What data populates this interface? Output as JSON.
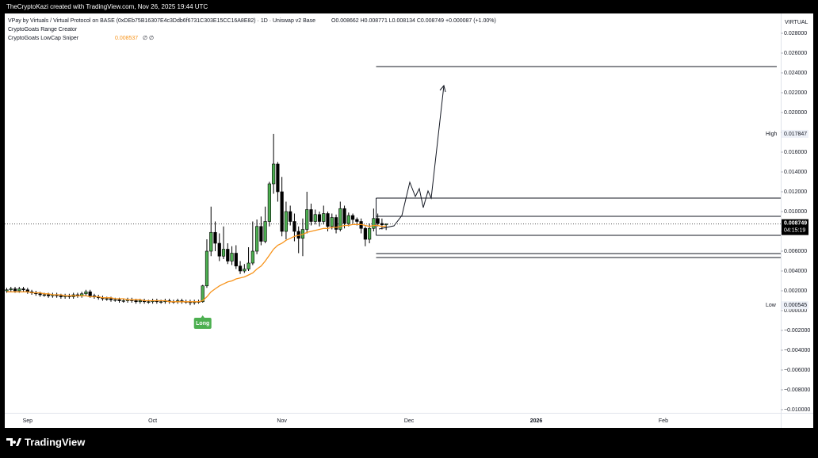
{
  "header": {
    "credit": "TheCryptoKazi created with TradingView.com, Nov 26, 2025 19:44 UTC",
    "symbol": "VPay by Virtuals / Virtual Protocol on BASE (0xDEb75B16307E4c3Ddb6f6731C303E15CC16A8E82) · 1D · Uniswap v2 Base",
    "ohlc": "O0.008662 H0.008771 L0.008134 C0.008749 +0.000087 (+1.00%)",
    "currency": "VIRTUAL",
    "indicator_range": "CryptoGoats Range Creator",
    "indicator_sniper": "CryptoGoats LowCap Sniper",
    "indicator_sniper_extra": "∅ ∅"
  },
  "chart_data": {
    "type": "candlestick",
    "categories": [
      null,
      null,
      null,
      null,
      null,
      "Sep",
      null,
      null,
      null,
      null,
      null,
      null,
      null,
      null,
      null,
      null,
      null,
      null,
      null,
      null,
      null,
      null,
      null,
      null,
      null,
      null,
      null,
      null,
      null,
      null,
      null,
      null,
      null,
      null,
      null,
      "Oct",
      null,
      null,
      null,
      null,
      null,
      null,
      null,
      null,
      null,
      null,
      null,
      null,
      null,
      null,
      null,
      null,
      null,
      null,
      null,
      null,
      null,
      null,
      null,
      null,
      null,
      null,
      null,
      null,
      null,
      null,
      "Nov",
      null,
      null,
      null,
      null,
      null,
      null,
      null,
      null,
      null,
      null,
      null,
      null,
      null,
      null,
      null,
      null,
      null,
      null,
      null,
      null,
      null,
      null,
      null,
      null,
      null
    ],
    "future_categories": [
      "Dec",
      "2026",
      "Feb"
    ],
    "open": [
      0.002,
      0.0021,
      0.0022,
      0.002,
      0.0022,
      0.0021,
      0.0019,
      0.0018,
      0.0017,
      0.0016,
      0.0016,
      0.0015,
      0.0016,
      0.0015,
      0.0014,
      0.0015,
      0.0014,
      0.0016,
      0.0015,
      0.0017,
      0.0019,
      0.0015,
      0.0014,
      0.0013,
      0.0012,
      0.0012,
      0.0011,
      0.0011,
      0.001,
      0.001,
      0.0011,
      0.001,
      0.0009,
      0.001,
      0.0009,
      0.0009,
      0.001,
      0.0009,
      0.0009,
      0.001,
      0.0009,
      0.0009,
      0.001,
      0.0009,
      0.0009,
      0.0008,
      0.0009,
      0.0009,
      0.0025,
      0.006,
      0.0079,
      0.0068,
      0.0055,
      0.0062,
      0.005,
      0.0058,
      0.0045,
      0.004,
      0.0042,
      0.0048,
      0.006,
      0.0085,
      0.007,
      0.009,
      0.0128,
      0.0148,
      0.012,
      0.008,
      0.01,
      0.009,
      0.008,
      0.0073,
      0.0082,
      0.0102,
      0.009,
      0.0097,
      0.009,
      0.0098,
      0.0085,
      0.0094,
      0.0082,
      0.0103,
      0.0088,
      0.0096,
      0.0092,
      0.009,
      0.0083,
      0.0072,
      0.0083,
      0.0093,
      0.0088,
      0.008662
    ],
    "high": [
      0.0023,
      0.0024,
      0.0024,
      0.0024,
      0.0024,
      0.0023,
      0.0021,
      0.002,
      0.0019,
      0.0018,
      0.0018,
      0.0018,
      0.0018,
      0.0017,
      0.0017,
      0.0017,
      0.0018,
      0.0018,
      0.0019,
      0.0021,
      0.0021,
      0.0017,
      0.0016,
      0.0015,
      0.0014,
      0.0014,
      0.0013,
      0.0013,
      0.0012,
      0.0013,
      0.0013,
      0.0012,
      0.0012,
      0.0012,
      0.0011,
      0.0012,
      0.0012,
      0.0011,
      0.0012,
      0.0012,
      0.0011,
      0.0012,
      0.0012,
      0.0011,
      0.0011,
      0.0011,
      0.0011,
      0.0026,
      0.0072,
      0.0105,
      0.009,
      0.0078,
      0.0085,
      0.0068,
      0.0065,
      0.0066,
      0.005,
      0.0047,
      0.0064,
      0.009,
      0.0092,
      0.0095,
      0.0105,
      0.013,
      0.017847,
      0.015,
      0.0135,
      0.011,
      0.0106,
      0.0098,
      0.0085,
      0.0093,
      0.012,
      0.0108,
      0.0102,
      0.01,
      0.0106,
      0.01,
      0.0098,
      0.0097,
      0.011,
      0.0106,
      0.0099,
      0.0098,
      0.0094,
      0.0093,
      0.0085,
      0.0088,
      0.0103,
      0.0098,
      0.0093,
      0.008771
    ],
    "low": [
      0.0018,
      0.0019,
      0.0018,
      0.0018,
      0.0019,
      0.0017,
      0.0016,
      0.0015,
      0.0014,
      0.0014,
      0.0013,
      0.0013,
      0.0013,
      0.0012,
      0.0012,
      0.0012,
      0.0012,
      0.0013,
      0.0013,
      0.0015,
      0.0013,
      0.0012,
      0.0011,
      0.001,
      0.001,
      0.0009,
      0.0009,
      0.0008,
      0.0008,
      0.0008,
      0.0008,
      0.0007,
      0.0007,
      0.0007,
      0.0007,
      0.0007,
      0.0007,
      0.0007,
      0.0007,
      0.0007,
      0.0007,
      0.0007,
      0.0007,
      0.0007,
      0.000545,
      0.0006,
      0.0007,
      0.0008,
      0.0023,
      0.0055,
      0.006,
      0.005,
      0.0052,
      0.0047,
      0.0046,
      0.0042,
      0.0037,
      0.0038,
      0.004,
      0.0046,
      0.0057,
      0.0066,
      0.0068,
      0.0085,
      0.0118,
      0.011,
      0.0075,
      0.0072,
      0.0086,
      0.007,
      0.0058,
      0.0055,
      0.0078,
      0.0086,
      0.0087,
      0.0085,
      0.0087,
      0.008,
      0.0082,
      0.0078,
      0.008,
      0.0083,
      0.0085,
      0.0088,
      0.0086,
      0.0078,
      0.0065,
      0.0068,
      0.008,
      0.0085,
      0.0082,
      0.008134
    ],
    "close": [
      0.0021,
      0.0022,
      0.002,
      0.0022,
      0.0021,
      0.0019,
      0.0018,
      0.0017,
      0.0016,
      0.0016,
      0.0015,
      0.0016,
      0.0015,
      0.0014,
      0.0015,
      0.0014,
      0.0016,
      0.0015,
      0.0017,
      0.0019,
      0.0015,
      0.0014,
      0.0013,
      0.0012,
      0.0012,
      0.0011,
      0.0011,
      0.001,
      0.001,
      0.0011,
      0.001,
      0.0009,
      0.001,
      0.0009,
      0.0009,
      0.001,
      0.0009,
      0.0009,
      0.001,
      0.0009,
      0.0009,
      0.001,
      0.0009,
      0.0009,
      0.0008,
      0.0009,
      0.0009,
      0.0025,
      0.006,
      0.0079,
      0.0068,
      0.0055,
      0.0062,
      0.005,
      0.0058,
      0.0045,
      0.004,
      0.0042,
      0.0048,
      0.006,
      0.0085,
      0.007,
      0.009,
      0.0128,
      0.0148,
      0.012,
      0.008,
      0.01,
      0.009,
      0.008,
      0.0073,
      0.0082,
      0.0102,
      0.009,
      0.0097,
      0.009,
      0.0098,
      0.0085,
      0.0094,
      0.0082,
      0.0103,
      0.0088,
      0.0096,
      0.0092,
      0.009,
      0.0083,
      0.0072,
      0.0083,
      0.0093,
      0.0088,
      0.008662,
      0.008749
    ],
    "up_color": "#4caf50",
    "down_color": "#000000",
    "ma": {
      "color": "#f7931a",
      "values": [
        0.0019,
        0.0019,
        0.0019,
        0.0019,
        0.0019,
        0.0019,
        0.0018,
        0.0018,
        0.0018,
        0.0017,
        0.0017,
        0.0016,
        0.0016,
        0.0016,
        0.0015,
        0.0015,
        0.0015,
        0.0015,
        0.0015,
        0.0015,
        0.0014,
        0.0014,
        0.0014,
        0.0013,
        0.0013,
        0.0013,
        0.0012,
        0.0012,
        0.0012,
        0.0011,
        0.0011,
        0.0011,
        0.0011,
        0.001,
        0.001,
        0.001,
        0.001,
        0.001,
        0.001,
        0.0009,
        0.0009,
        0.0009,
        0.0009,
        0.0009,
        0.0009,
        0.0009,
        0.0009,
        0.001,
        0.0014,
        0.0019,
        0.0022,
        0.0025,
        0.0027,
        0.0029,
        0.003,
        0.0032,
        0.0033,
        0.0034,
        0.0036,
        0.0038,
        0.0042,
        0.0045,
        0.005,
        0.0056,
        0.0062,
        0.0066,
        0.0068,
        0.0071,
        0.0073,
        0.0075,
        0.0076,
        0.0077,
        0.0079,
        0.008,
        0.0081,
        0.0082,
        0.0083,
        0.0083,
        0.0084,
        0.0084,
        0.0085,
        0.0086,
        0.0086,
        0.0087,
        0.0087,
        0.0087,
        0.0086,
        0.0085,
        0.0086,
        0.0086,
        0.0085,
        0.008537
      ]
    },
    "levels": [
      0.02464,
      0.01136,
      0.00952,
      0.0076,
      0.00576,
      0.00536
    ],
    "ylim": [
      -0.01088,
      0.03
    ],
    "yticks": [
      {
        "value": 0.028,
        "label": "0.028000"
      },
      {
        "value": 0.026,
        "label": "0.026000"
      },
      {
        "value": 0.024,
        "label": "0.024000"
      },
      {
        "value": 0.022,
        "label": "0.022000"
      },
      {
        "value": 0.02,
        "label": "0.020000"
      },
      {
        "value": 0.018,
        "label": "0.018000"
      },
      {
        "value": 0.016,
        "label": "0.016000"
      },
      {
        "value": 0.014,
        "label": "0.014000"
      },
      {
        "value": 0.012,
        "label": "0.012000"
      },
      {
        "value": 0.01,
        "label": "0.010000"
      },
      {
        "value": 0.008,
        "label": "0.008000"
      },
      {
        "value": 0.006,
        "label": "0.006000"
      },
      {
        "value": 0.004,
        "label": "0.004000"
      },
      {
        "value": 0.002,
        "label": "0.002000"
      },
      {
        "value": 0,
        "label": "0.000000"
      },
      {
        "value": -0.002,
        "label": "−0.002000"
      },
      {
        "value": -0.004,
        "label": "−0.004000"
      },
      {
        "value": -0.006,
        "label": "−0.006000"
      },
      {
        "value": -0.008,
        "label": "−0.008000"
      },
      {
        "value": -0.01,
        "label": "−0.010000"
      }
    ],
    "high_marker": {
      "label": "High",
      "value": 0.017847
    },
    "low_marker": {
      "label": "Low",
      "value": 0.000545
    },
    "last": {
      "value": 0.008749,
      "countdown": "04:15:19"
    },
    "signal": {
      "label": "Long",
      "index": 47
    }
  },
  "footer": {
    "brand": "TradingView"
  }
}
